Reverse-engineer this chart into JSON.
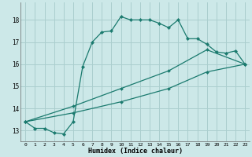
{
  "xlabel": "Humidex (Indice chaleur)",
  "xlim": [
    -0.5,
    23.5
  ],
  "ylim": [
    12.5,
    18.8
  ],
  "yticks": [
    13,
    14,
    15,
    16,
    17,
    18
  ],
  "xticks": [
    0,
    1,
    2,
    3,
    4,
    5,
    6,
    7,
    8,
    9,
    10,
    11,
    12,
    13,
    14,
    15,
    16,
    17,
    18,
    19,
    20,
    21,
    22,
    23
  ],
  "bg_color": "#cce8e8",
  "grid_color": "#aacece",
  "line_color": "#1a7a6e",
  "line1_x": [
    0,
    1,
    2,
    3,
    4,
    5,
    6,
    7,
    8,
    9,
    10,
    11,
    12,
    13,
    14,
    15,
    16,
    17,
    18,
    19,
    20,
    21,
    22,
    23
  ],
  "line1_y": [
    13.4,
    13.1,
    13.1,
    12.9,
    12.85,
    13.4,
    15.9,
    17.0,
    17.45,
    17.5,
    18.15,
    18.0,
    18.0,
    18.0,
    17.85,
    17.65,
    18.0,
    17.15,
    17.15,
    16.9,
    16.55,
    16.5,
    16.6,
    16.0
  ],
  "line2_x": [
    0,
    23
  ],
  "line2_y": [
    13.4,
    16.0
  ],
  "line3_x": [
    0,
    23
  ],
  "line3_y": [
    13.4,
    16.0
  ],
  "line2_markers_x": [
    0,
    5,
    10,
    15,
    19,
    23
  ],
  "line2_markers_y": [
    13.4,
    13.8,
    14.3,
    14.9,
    15.65,
    16.0
  ],
  "line3_markers_x": [
    0,
    5,
    10,
    15,
    19,
    23
  ],
  "line3_markers_y": [
    13.4,
    14.1,
    14.9,
    15.7,
    16.65,
    16.0
  ]
}
